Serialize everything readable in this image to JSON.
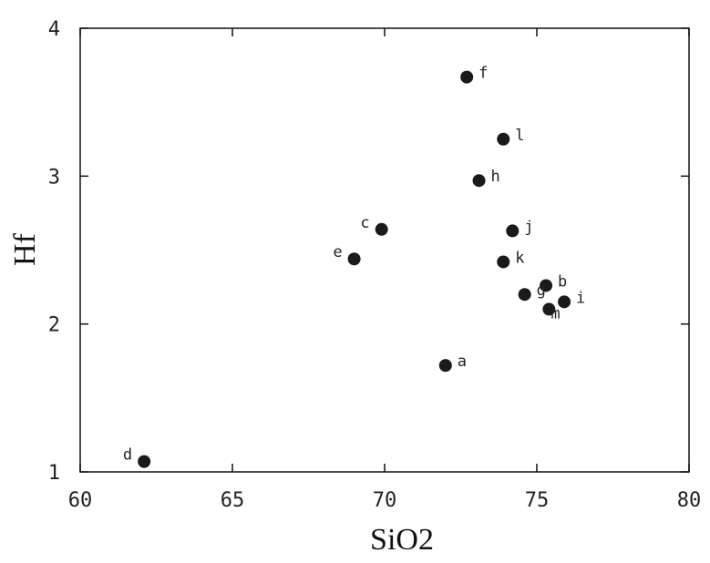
{
  "chart_data": {
    "type": "scatter",
    "title": "",
    "xlabel": "SiO2",
    "ylabel": "Hf",
    "xlim": [
      60,
      80
    ],
    "ylim": [
      1,
      4
    ],
    "xticks": [
      60,
      65,
      70,
      75,
      80
    ],
    "yticks": [
      1,
      2,
      3,
      4
    ],
    "grid": false,
    "points": [
      {
        "label": "a",
        "x": 72.0,
        "y": 1.72
      },
      {
        "label": "b",
        "x": 75.3,
        "y": 2.26
      },
      {
        "label": "c",
        "x": 69.9,
        "y": 2.64
      },
      {
        "label": "d",
        "x": 62.1,
        "y": 1.07
      },
      {
        "label": "e",
        "x": 69.0,
        "y": 2.44
      },
      {
        "label": "f",
        "x": 72.7,
        "y": 3.67
      },
      {
        "label": "g",
        "x": 74.6,
        "y": 2.2
      },
      {
        "label": "h",
        "x": 73.1,
        "y": 2.97
      },
      {
        "label": "i",
        "x": 75.9,
        "y": 2.15
      },
      {
        "label": "j",
        "x": 74.2,
        "y": 2.63
      },
      {
        "label": "k",
        "x": 73.9,
        "y": 2.42
      },
      {
        "label": "l",
        "x": 73.9,
        "y": 3.25
      },
      {
        "label": "m",
        "x": 75.4,
        "y": 2.1
      }
    ]
  }
}
